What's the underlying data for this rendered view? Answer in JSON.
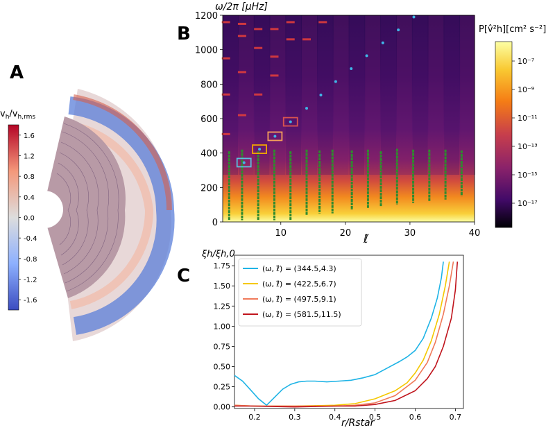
{
  "panels": {
    "A": {
      "letter": "A",
      "colorbar_label": "v",
      "colorbar_label_sub": "h",
      "colorbar_label_mid": "/v",
      "colorbar_label_sub2": "h,rms",
      "colorbar_ticks": [
        "1.6",
        "1.2",
        "0.8",
        "0.4",
        "0.0",
        "-0.4",
        "-0.8",
        "-1.2",
        "-1.6"
      ],
      "colorbar_range": [
        -1.8,
        1.8
      ]
    },
    "B": {
      "letter": "B",
      "ylabel": "ω/2π [μHz]",
      "xlabel": "ℓ̃",
      "colorbar_label": "P[v̂²h][cm² s⁻²]",
      "colorbar_ticks": [
        "10⁻⁷",
        "10⁻⁹",
        "10⁻¹¹",
        "10⁻¹³",
        "10⁻¹⁵",
        "10⁻¹⁷"
      ]
    },
    "C": {
      "letter": "C",
      "ylabel": "ξh/ξh,0",
      "xlabel": "r/Rstar"
    }
  },
  "chart_data": [
    {
      "type": "heatmap",
      "panel": "B",
      "x_ticks": [
        10,
        20,
        30,
        40
      ],
      "x_tick_labels": [
        "10",
        "20",
        "30",
        "40"
      ],
      "y_ticks": [
        0,
        200,
        400,
        600,
        800,
        1000,
        1200
      ],
      "y_tick_labels": [
        "0",
        "200",
        "400",
        "600",
        "800",
        "1000",
        "1200"
      ],
      "xlim": [
        1,
        40
      ],
      "ylim": [
        0,
        1200
      ],
      "green_lines": {
        "x": [
          2,
          4,
          6.5,
          9,
          11.5,
          14,
          16,
          18,
          21,
          23.5,
          25.5,
          28,
          30.5,
          33,
          35.5,
          38
        ],
        "top": [
          410,
          420,
          410,
          420,
          410,
          420,
          415,
          420,
          415,
          420,
          410,
          425,
          420,
          420,
          420,
          415
        ],
        "bottom": [
          10,
          10,
          10,
          10,
          10,
          40,
          50,
          50,
          70,
          80,
          90,
          100,
          110,
          120,
          130,
          150
        ]
      },
      "blue_points": {
        "x": [
          4.3,
          6.7,
          9.1,
          11.5,
          14,
          16.2,
          18.5,
          20.9,
          23.3,
          25.8,
          28.2,
          30.6
        ],
        "y": [
          344.5,
          422.5,
          497.5,
          581.5,
          660,
          737,
          815,
          890,
          965,
          1040,
          1115,
          1190
        ]
      },
      "red_points": {
        "x": [
          1.5,
          1.5,
          1.5,
          1.5,
          4,
          4,
          4,
          4,
          6.5,
          6.5,
          6.5,
          9,
          9,
          9,
          11.5,
          11.5,
          14,
          16.5
        ],
        "y": [
          1160,
          950,
          740,
          510,
          1080,
          870,
          620,
          1150,
          1010,
          740,
          1120,
          850,
          1120,
          960,
          1060,
          1160,
          1060,
          1160
        ]
      },
      "boxes": [
        {
          "x": 4.3,
          "y": 344.5,
          "color": "#5bc0de"
        },
        {
          "x": 6.7,
          "y": 422.5,
          "color": "#f0a500"
        },
        {
          "x": 9.1,
          "y": 497.5,
          "color": "#f5a05a"
        },
        {
          "x": 11.5,
          "y": 581.5,
          "color": "#d9534f"
        }
      ]
    },
    {
      "type": "line",
      "panel": "C",
      "x_ticks": [
        0.2,
        0.3,
        0.4,
        0.5,
        0.6,
        0.7
      ],
      "x_tick_labels": [
        "0.2",
        "0.3",
        "0.4",
        "0.5",
        "0.6",
        "0.7"
      ],
      "y_ticks": [
        0,
        0.25,
        0.5,
        0.75,
        1.0,
        1.25,
        1.5,
        1.75
      ],
      "y_tick_labels": [
        "0.00",
        "0.25",
        "0.50",
        "0.75",
        "1.00",
        "1.25",
        "1.50",
        "1.75"
      ],
      "xlim": [
        0.15,
        0.72
      ],
      "ylim": [
        -0.02,
        1.88
      ],
      "series": [
        {
          "name": "(ω, ℓ̃) = (344.5,4.3)",
          "color": "#1fb4e6",
          "x": [
            0.15,
            0.17,
            0.19,
            0.21,
            0.23,
            0.25,
            0.27,
            0.29,
            0.31,
            0.33,
            0.35,
            0.38,
            0.41,
            0.44,
            0.47,
            0.5,
            0.53,
            0.56,
            0.58,
            0.6,
            0.62,
            0.64,
            0.655,
            0.665,
            0.67
          ],
          "y": [
            0.39,
            0.32,
            0.21,
            0.1,
            0.02,
            0.12,
            0.22,
            0.28,
            0.31,
            0.32,
            0.32,
            0.31,
            0.32,
            0.33,
            0.36,
            0.4,
            0.48,
            0.56,
            0.62,
            0.7,
            0.85,
            1.1,
            1.35,
            1.6,
            1.8
          ]
        },
        {
          "name": "(ω, ℓ̃) = (422.5,6.7)",
          "color": "#f5c800",
          "x": [
            0.15,
            0.2,
            0.3,
            0.4,
            0.45,
            0.5,
            0.55,
            0.58,
            0.6,
            0.62,
            0.64,
            0.66,
            0.675,
            0.685
          ],
          "y": [
            0.02,
            0.01,
            0.01,
            0.02,
            0.04,
            0.1,
            0.2,
            0.3,
            0.42,
            0.58,
            0.82,
            1.15,
            1.5,
            1.8
          ]
        },
        {
          "name": "(ω, ℓ̃) = (497.5,9.1)",
          "color": "#f07a5a",
          "x": [
            0.15,
            0.2,
            0.3,
            0.4,
            0.45,
            0.5,
            0.55,
            0.6,
            0.63,
            0.65,
            0.67,
            0.685,
            0.695
          ],
          "y": [
            0.02,
            0.01,
            0.01,
            0.01,
            0.02,
            0.05,
            0.14,
            0.33,
            0.55,
            0.8,
            1.15,
            1.5,
            1.8
          ]
        },
        {
          "name": "(ω, ℓ̃) = (581.5,11.5)",
          "color": "#c0141c",
          "x": [
            0.15,
            0.2,
            0.3,
            0.4,
            0.45,
            0.5,
            0.55,
            0.6,
            0.63,
            0.65,
            0.67,
            0.69,
            0.7,
            0.705
          ],
          "y": [
            0.01,
            0.01,
            0.0,
            0.01,
            0.01,
            0.03,
            0.08,
            0.2,
            0.35,
            0.5,
            0.75,
            1.1,
            1.45,
            1.8
          ]
        }
      ]
    }
  ]
}
